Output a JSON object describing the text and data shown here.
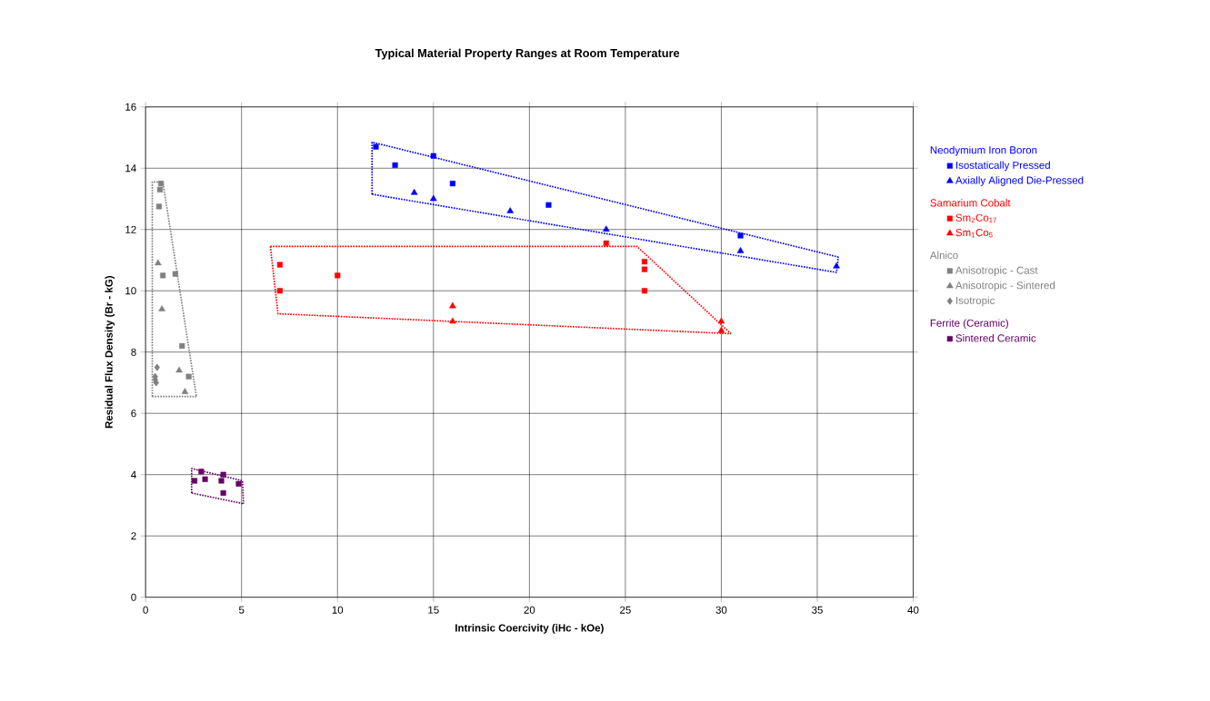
{
  "chart_data": {
    "type": "scatter",
    "title": "Typical Material Property Ranges at Room Temperature",
    "xlabel": "Intrinsic Coercivity (iHc - kOe)",
    "ylabel": "Residual Flux Density (Br - kG)",
    "xlim": [
      0,
      40
    ],
    "ylim": [
      0,
      16
    ],
    "xticks": [
      0,
      5,
      10,
      15,
      20,
      25,
      30,
      35,
      40
    ],
    "yticks": [
      0,
      2,
      4,
      6,
      8,
      10,
      12,
      14,
      16
    ],
    "grid": true,
    "legend": "right",
    "annotations": [
      "Neodymium Iron Boron",
      "Samarium Cobalt",
      "Alnico",
      "Ferrite (Ceramic)"
    ],
    "series": [
      {
        "name": "Isostatically Pressed",
        "color": "#0000ff",
        "marker": "square",
        "x": [
          12,
          13,
          15,
          16,
          21,
          31
        ],
        "values": [
          14.7,
          14.1,
          14.4,
          13.5,
          12.8,
          11.8
        ]
      },
      {
        "name": "Axially Aligned Die-Pressed",
        "color": "#0000ff",
        "marker": "triangle",
        "x": [
          14,
          15,
          19,
          24,
          31,
          36
        ],
        "values": [
          13.2,
          13,
          12.6,
          12,
          11.3,
          10.8
        ]
      },
      {
        "name": "Sm$_{2}$Co$_{17}$",
        "color": "#ff0000",
        "marker": "square",
        "x": [
          7,
          7,
          10,
          24,
          26,
          26,
          26
        ],
        "values": [
          10.85,
          10,
          10.5,
          11.55,
          10.95,
          10.7,
          10
        ]
      },
      {
        "name": "Sm$_{1}$Co$_{5}$",
        "color": "#ff0000",
        "marker": "triangle",
        "x": [
          16,
          16,
          30,
          30
        ],
        "values": [
          9.5,
          9,
          9,
          8.7
        ]
      },
      {
        "name": "Anisotropic - Cast",
        "color": "#808080",
        "marker": "square",
        "x": [
          0.8,
          0.75,
          0.7,
          1.55,
          0.9,
          1.9,
          2.25
        ],
        "values": [
          13.5,
          13.3,
          12.75,
          10.55,
          10.5,
          8.2,
          7.2
        ]
      },
      {
        "name": "Anisotropic - Sintered",
        "color": "#808080",
        "marker": "triangle",
        "x": [
          0.65,
          0.85,
          1.75,
          2.05
        ],
        "values": [
          10.9,
          9.4,
          7.4,
          6.7
        ]
      },
      {
        "name": "Isotropic",
        "color": "#808080",
        "marker": "diamond",
        "x": [
          0.6,
          0.5,
          0.55,
          0.5
        ],
        "values": [
          7.5,
          7.2,
          7.0,
          7.1
        ]
      },
      {
        "name": "Sintered Ceramic",
        "color": "#660066",
        "marker": "square",
        "x": [
          2.9,
          3.1,
          2.55,
          4.05,
          3.95,
          4.85,
          4.05
        ],
        "values": [
          4.1,
          3.85,
          3.8,
          4.0,
          3.8,
          3.7,
          3.4
        ]
      },
      {
        "type": "line",
        "color": "#0000ff",
        "marker": "none",
        "line_style": "dotted",
        "x": [
          11.8,
          11.8,
          36.1
        ],
        "values": [
          13.15,
          14.85,
          11.1
        ]
      },
      {
        "type": "line",
        "color": "#0000ff",
        "marker": "none",
        "line_style": "dotted",
        "x": [
          11.8,
          36.0,
          36.1
        ],
        "values": [
          13.15,
          10.6,
          11.1
        ]
      },
      {
        "type": "line",
        "color": "#ff0000",
        "marker": "none",
        "line_style": "dotted",
        "x": [
          6.5,
          25.6,
          30.5
        ],
        "values": [
          11.45,
          11.45,
          8.6
        ]
      },
      {
        "type": "line",
        "color": "#ff0000",
        "marker": "none",
        "line_style": "dotted",
        "x": [
          6.5,
          6.9,
          30.5
        ],
        "values": [
          11.45,
          9.25,
          8.6
        ]
      },
      {
        "type": "line",
        "color": "#808080",
        "marker": "none",
        "line_style": "dotted",
        "x": [
          0.35,
          0.35,
          0.9,
          2.65
        ],
        "values": [
          6.55,
          13.55,
          13.55,
          6.55
        ]
      },
      {
        "type": "line",
        "color": "#808080",
        "marker": "none",
        "line_style": "dotted",
        "x": [
          0.35,
          2.65
        ],
        "values": [
          6.55,
          6.55
        ]
      },
      {
        "type": "line",
        "color": "#660066",
        "marker": "none",
        "line_style": "dotted",
        "x": [
          2.4,
          2.4,
          5.05,
          5.1
        ],
        "values": [
          3.4,
          4.2,
          3.8,
          3.05
        ]
      },
      {
        "type": "line",
        "color": "#660066",
        "marker": "none",
        "line_style": "dotted",
        "x": [
          2.4,
          5.1
        ],
        "values": [
          3.4,
          3.05
        ]
      }
    ]
  }
}
